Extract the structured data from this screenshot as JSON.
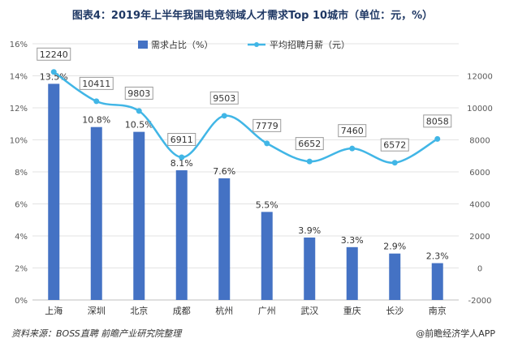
{
  "title": "图表4：2019年上半年我国电竞领域人才需求Top 10城市（单位：元，%）",
  "footer": {
    "source": "资料来源：BOSS直聘 前瞻产业研究院整理",
    "brand": "@前瞻经济学人APP"
  },
  "colors": {
    "bar": "#4472c4",
    "line": "#41b6e6",
    "title": "#1f3864"
  },
  "chart_data": {
    "type": "bar",
    "categories": [
      "上海",
      "深圳",
      "北京",
      "成都",
      "杭州",
      "广州",
      "武汉",
      "重庆",
      "长沙",
      "南京"
    ],
    "series": [
      {
        "name": "需求占比（%）",
        "type": "bar",
        "axis": "left",
        "values": [
          13.5,
          10.8,
          10.5,
          8.1,
          7.6,
          5.5,
          3.9,
          3.3,
          2.9,
          2.3
        ],
        "labels": [
          "13.5%",
          "10.8%",
          "10.5%",
          "8.1%",
          "7.6%",
          "5.5%",
          "3.9%",
          "3.3%",
          "2.9%",
          "2.3%"
        ]
      },
      {
        "name": "平均招聘月薪（元）",
        "type": "line",
        "axis": "right",
        "values": [
          12240,
          10411,
          9803,
          6911,
          9503,
          7779,
          6652,
          7460,
          6572,
          8058
        ],
        "labels": [
          "12240",
          "10411",
          "9803",
          "6911",
          "9503",
          "7779",
          "6652",
          "7460",
          "6572",
          "8058"
        ]
      }
    ],
    "y_left": {
      "ylim": [
        0,
        16
      ],
      "ticks": [
        "0%",
        "2%",
        "4%",
        "6%",
        "8%",
        "10%",
        "12%",
        "14%",
        "16%"
      ]
    },
    "y_right": {
      "ylim": [
        -2000,
        14000
      ],
      "ticks": [
        "-2000",
        "0",
        "2000",
        "4000",
        "6000",
        "8000",
        "10000",
        "12000"
      ]
    },
    "legend_position": "top",
    "grid": true
  }
}
